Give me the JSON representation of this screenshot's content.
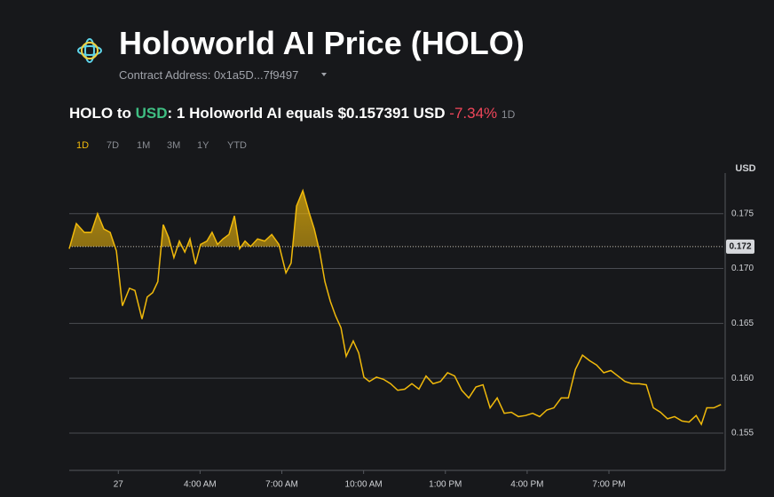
{
  "header": {
    "title": "Holoworld AI Price (HOLO)",
    "contract": "Contract Address: 0x1a5D...7f9497"
  },
  "price": {
    "base": "HOLO to ",
    "quote": "USD",
    "text": ": 1 Holoworld AI equals $0.157391 USD",
    "change": "-7.34%",
    "period": "1D"
  },
  "tabs": [
    "1D",
    "7D",
    "1M",
    "3M",
    "1Y",
    "YTD"
  ],
  "chart_data": {
    "type": "line",
    "axis_unit": "USD",
    "color": "#f0b90b",
    "x": [
      -0.8,
      -0.54,
      -0.25,
      0.01,
      0.24,
      0.47,
      0.7,
      0.93,
      1.15,
      1.41,
      1.61,
      1.87,
      2.06,
      2.26,
      2.45,
      2.65,
      2.85,
      3.04,
      3.24,
      3.44,
      3.63,
      3.83,
      4.02,
      4.25,
      4.44,
      4.64,
      4.84,
      5.06,
      5.26,
      5.45,
      5.65,
      5.85,
      6.11,
      6.37,
      6.63,
      6.89,
      7.15,
      7.34,
      7.54,
      7.77,
      8.0,
      8.19,
      8.39,
      8.58,
      8.78,
      8.97,
      9.17,
      9.36,
      9.62,
      9.82,
      10.01,
      10.21,
      10.47,
      10.73,
      10.99,
      11.25,
      11.51,
      11.77,
      12.03,
      12.29,
      12.55,
      12.82,
      13.08,
      13.34,
      13.6,
      13.86,
      14.12,
      14.38,
      14.64,
      14.9,
      15.16,
      15.42,
      15.68,
      15.94,
      16.2,
      16.46,
      16.72,
      16.98,
      17.25,
      17.51,
      17.77,
      18.03,
      18.29,
      18.55,
      18.81,
      19.07,
      19.33,
      19.59,
      19.85,
      20.11,
      20.37,
      20.63,
      20.89,
      21.15,
      21.41,
      21.68,
      21.94,
      22.2,
      22.39,
      22.59,
      22.85,
      23.11
    ],
    "values": [
      0.1718,
      0.1741,
      0.1733,
      0.1733,
      0.175,
      0.1736,
      0.1733,
      0.1716,
      0.1666,
      0.1682,
      0.168,
      0.1654,
      0.1674,
      0.1678,
      0.1688,
      0.174,
      0.1728,
      0.171,
      0.1725,
      0.1715,
      0.1727,
      0.1704,
      0.1722,
      0.1725,
      0.1733,
      0.1722,
      0.1727,
      0.1731,
      0.1748,
      0.1718,
      0.1725,
      0.172,
      0.1727,
      0.1725,
      0.1731,
      0.1722,
      0.1696,
      0.1705,
      0.1757,
      0.1771,
      0.1751,
      0.1736,
      0.1715,
      0.1688,
      0.167,
      0.1657,
      0.1646,
      0.162,
      0.1634,
      0.1623,
      0.1601,
      0.1597,
      0.1601,
      0.1599,
      0.1595,
      0.1589,
      0.159,
      0.1595,
      0.159,
      0.1602,
      0.1595,
      0.1597,
      0.1605,
      0.1602,
      0.1589,
      0.1582,
      0.1592,
      0.1594,
      0.1573,
      0.1582,
      0.1568,
      0.1569,
      0.1565,
      0.1566,
      0.1568,
      0.1565,
      0.1571,
      0.1573,
      0.1582,
      0.1582,
      0.1608,
      0.1621,
      0.1616,
      0.1612,
      0.1605,
      0.1607,
      0.1602,
      0.1597,
      0.1595,
      0.1595,
      0.1594,
      0.1573,
      0.1569,
      0.1563,
      0.1565,
      0.1561,
      0.156,
      0.1566,
      0.1558,
      0.1573,
      0.1573,
      0.1576
    ],
    "xlim": [
      -0.8,
      23.2
    ],
    "xticks": [
      {
        "value": 1,
        "label": "27"
      },
      {
        "value": 4,
        "label": "4:00 AM"
      },
      {
        "value": 7,
        "label": "7:00 AM"
      },
      {
        "value": 10,
        "label": "10:00 AM"
      },
      {
        "value": 13,
        "label": "1:00 PM"
      },
      {
        "value": 16,
        "label": "4:00 PM"
      },
      {
        "value": 19,
        "label": "7:00 PM"
      }
    ],
    "ylim": [
      0.1516,
      0.1787
    ],
    "yticks": [
      0.155,
      {
        "value": 0.16,
        "label": "0.160"
      },
      0.165,
      {
        "value": 0.17,
        "label": "0.170"
      },
      0.175
    ],
    "reference_line": 0.172,
    "grid": true
  }
}
